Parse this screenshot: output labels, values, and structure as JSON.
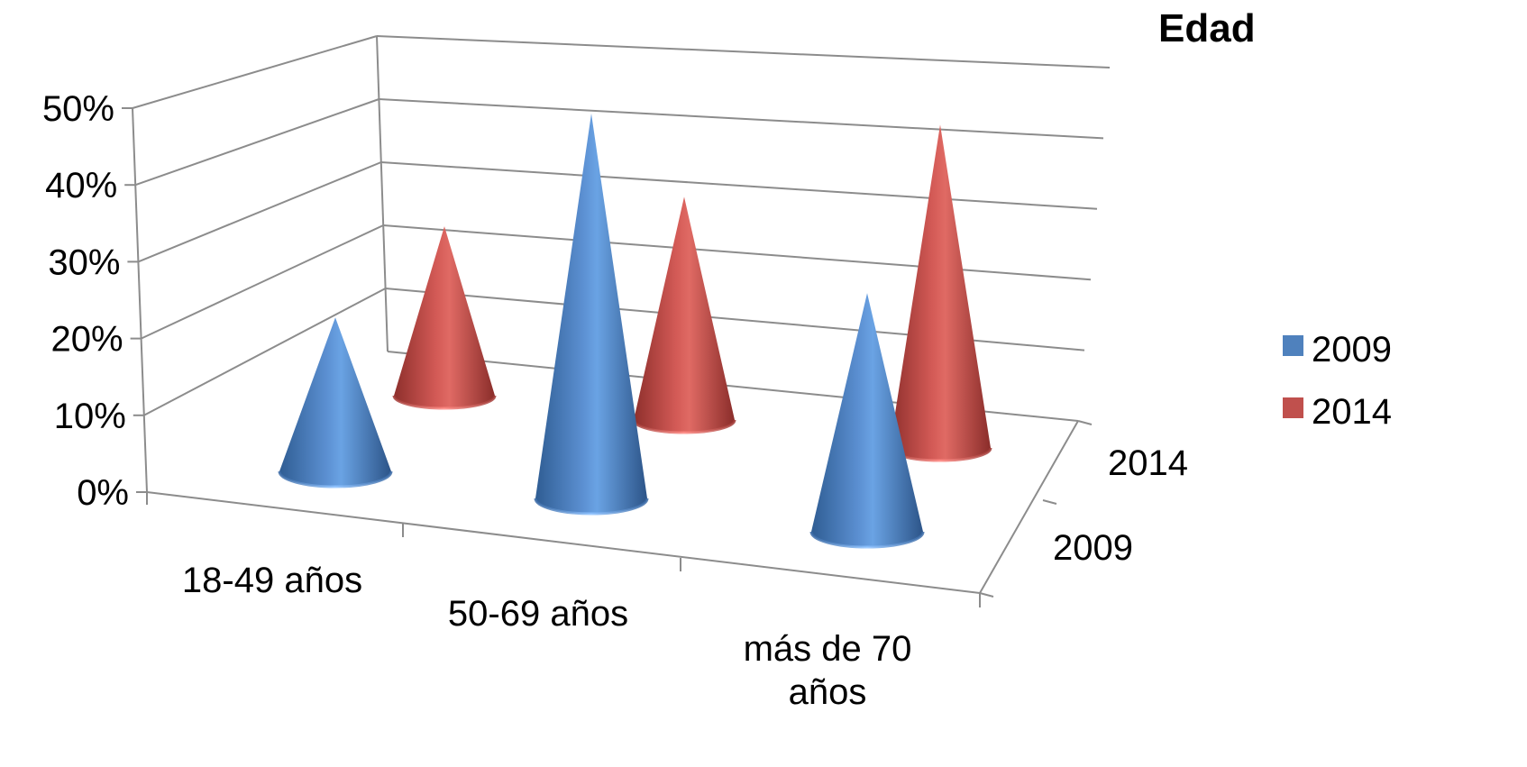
{
  "chart_data": {
    "type": "cone3d",
    "title": "Edad",
    "categories": [
      "18-49 años",
      "50-69 años",
      "más de 70 años"
    ],
    "category_lines": [
      [
        "18-49 años"
      ],
      [
        "50-69 años"
      ],
      [
        "más de 70",
        "años"
      ]
    ],
    "depth_categories": [
      "2009",
      "2014"
    ],
    "series": [
      {
        "name": "2009",
        "color": "#4f81bd",
        "values": [
          20,
          50,
          31
        ]
      },
      {
        "name": "2014",
        "color": "#c0504d",
        "values": [
          22,
          29,
          42
        ]
      }
    ],
    "ylim": [
      0,
      50
    ],
    "yticks": [
      "0%",
      "10%",
      "20%",
      "30%",
      "40%",
      "50%"
    ],
    "legend_position": "right",
    "grid": true
  }
}
